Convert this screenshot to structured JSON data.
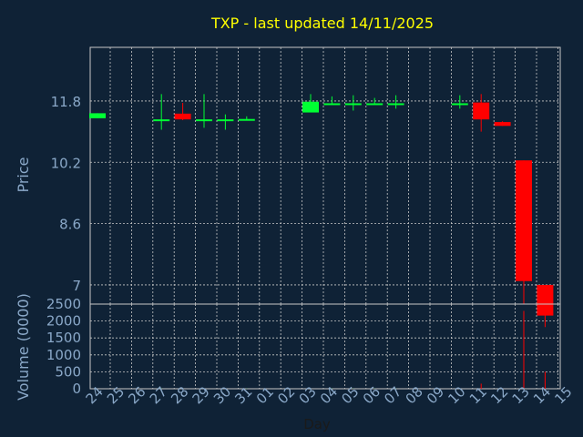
{
  "chart_data": {
    "type": "candlestick",
    "title": "TXP - last updated 14/11/2025",
    "xlabel": "Day",
    "price_panel": {
      "ylabel": "Price",
      "ylim": [
        6.5,
        13.2
      ],
      "yticks": [
        "11.8",
        "10.2",
        "8.6",
        "7"
      ],
      "ytick_values": [
        11.8,
        10.2,
        8.6,
        7.0
      ]
    },
    "volume_panel": {
      "ylabel": "Volume (0000)",
      "ylim": [
        0,
        2500
      ],
      "yticks": [
        "2500",
        "2000",
        "1500",
        "1000",
        "500",
        "0"
      ],
      "ytick_values": [
        2500,
        2000,
        1500,
        1000,
        500,
        0
      ]
    },
    "x_ticks": [
      "24",
      "25",
      "26",
      "27",
      "28",
      "29",
      "30",
      "31",
      "01",
      "02",
      "03",
      "04",
      "05",
      "06",
      "07",
      "08",
      "09",
      "10",
      "11",
      "12",
      "13",
      "14",
      "15"
    ],
    "candles": [
      {
        "day": "24",
        "open": 11.35,
        "close": 11.48,
        "high": 11.48,
        "low": 11.35,
        "volume": 0
      },
      {
        "day": "27",
        "open": 11.3,
        "close": 11.32,
        "high": 11.98,
        "low": 11.05,
        "volume": 5
      },
      {
        "day": "28",
        "open": 11.47,
        "close": 11.32,
        "high": 11.75,
        "low": 11.3,
        "volume": 10
      },
      {
        "day": "29",
        "open": 11.3,
        "close": 11.32,
        "high": 11.98,
        "low": 11.1,
        "volume": 5
      },
      {
        "day": "30",
        "open": 11.3,
        "close": 11.32,
        "high": 11.45,
        "low": 11.05,
        "volume": 5
      },
      {
        "day": "31",
        "open": 11.3,
        "close": 11.33,
        "high": 11.4,
        "low": 11.3,
        "volume": 5
      },
      {
        "day": "03",
        "open": 11.5,
        "close": 11.78,
        "high": 11.98,
        "low": 11.5,
        "volume": 10
      },
      {
        "day": "04",
        "open": 11.72,
        "close": 11.74,
        "high": 11.92,
        "low": 11.7,
        "volume": 5
      },
      {
        "day": "05",
        "open": 11.72,
        "close": 11.74,
        "high": 11.95,
        "low": 11.55,
        "volume": 5
      },
      {
        "day": "06",
        "open": 11.72,
        "close": 11.74,
        "high": 11.88,
        "low": 11.7,
        "volume": 5
      },
      {
        "day": "07",
        "open": 11.72,
        "close": 11.74,
        "high": 11.95,
        "low": 11.6,
        "volume": 5
      },
      {
        "day": "10",
        "open": 11.72,
        "close": 11.74,
        "high": 11.95,
        "low": 11.6,
        "volume": 5
      },
      {
        "day": "11",
        "open": 11.76,
        "close": 11.32,
        "high": 11.98,
        "low": 11.0,
        "volume": 150
      },
      {
        "day": "12",
        "open": 11.25,
        "close": 11.15,
        "high": 11.27,
        "low": 11.15,
        "volume": 10
      },
      {
        "day": "13",
        "open": 10.25,
        "close": 7.1,
        "high": 10.25,
        "low": 6.5,
        "volume": 2300
      },
      {
        "day": "14",
        "open": 7.0,
        "close": 6.2,
        "high": 7.0,
        "low": 5.9,
        "volume": 500
      }
    ],
    "colors": {
      "background": "#0f2236",
      "up": "#00ff33",
      "down": "#ff0000",
      "grid": "#c8c8c8",
      "axis_text": "#8aa8c8",
      "title": "#ffff00"
    },
    "grid": true
  }
}
